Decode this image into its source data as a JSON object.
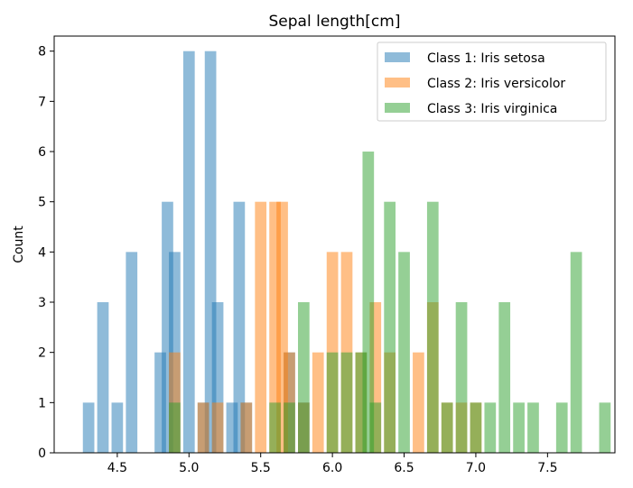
{
  "chart_data": {
    "type": "bar",
    "title": "Sepal length[cm]",
    "xlabel": "",
    "ylabel": "Count",
    "xlim": [
      4.06,
      7.97
    ],
    "ylim": [
      0,
      8.3
    ],
    "bin_width": 0.08,
    "xticks": [
      4.5,
      5.0,
      5.5,
      6.0,
      6.5,
      7.0,
      7.5
    ],
    "xtick_labels": [
      "4.5",
      "5.0",
      "5.5",
      "6.0",
      "6.5",
      "7.0",
      "7.5"
    ],
    "yticks": [
      0,
      1,
      2,
      3,
      4,
      5,
      6,
      7,
      8
    ],
    "ytick_labels": [
      "0",
      "1",
      "2",
      "3",
      "4",
      "5",
      "6",
      "7",
      "8"
    ],
    "grid": false,
    "legend_position": "top-right",
    "opacity": 0.5,
    "series": [
      {
        "name": "Class 1: Iris setosa",
        "color": "#1f77b4",
        "bins": [
          {
            "x": 4.3,
            "count": 1
          },
          {
            "x": 4.4,
            "count": 3
          },
          {
            "x": 4.5,
            "count": 1
          },
          {
            "x": 4.6,
            "count": 4
          },
          {
            "x": 4.8,
            "count": 2
          },
          {
            "x": 4.85,
            "count": 5
          },
          {
            "x": 4.9,
            "count": 4
          },
          {
            "x": 5.0,
            "count": 8
          },
          {
            "x": 5.1,
            "count": 1
          },
          {
            "x": 5.15,
            "count": 8
          },
          {
            "x": 5.2,
            "count": 3
          },
          {
            "x": 5.3,
            "count": 1
          },
          {
            "x": 5.35,
            "count": 5
          },
          {
            "x": 5.4,
            "count": 1
          },
          {
            "x": 5.7,
            "count": 2
          },
          {
            "x": 5.8,
            "count": 1
          }
        ]
      },
      {
        "name": "Class 2: Iris versicolor",
        "color": "#ff7f0e",
        "bins": [
          {
            "x": 4.9,
            "count": 2
          },
          {
            "x": 5.1,
            "count": 1
          },
          {
            "x": 5.2,
            "count": 1
          },
          {
            "x": 5.4,
            "count": 1
          },
          {
            "x": 5.5,
            "count": 5
          },
          {
            "x": 5.6,
            "count": 5
          },
          {
            "x": 5.65,
            "count": 5
          },
          {
            "x": 5.7,
            "count": 2
          },
          {
            "x": 5.8,
            "count": 1
          },
          {
            "x": 5.9,
            "count": 2
          },
          {
            "x": 6.0,
            "count": 4
          },
          {
            "x": 6.1,
            "count": 4
          },
          {
            "x": 6.2,
            "count": 2
          },
          {
            "x": 6.3,
            "count": 3
          },
          {
            "x": 6.4,
            "count": 2
          },
          {
            "x": 6.6,
            "count": 2
          },
          {
            "x": 6.7,
            "count": 3
          },
          {
            "x": 6.8,
            "count": 1
          },
          {
            "x": 6.9,
            "count": 1
          },
          {
            "x": 7.0,
            "count": 1
          }
        ]
      },
      {
        "name": "Class 3: Iris virginica",
        "color": "#2ca02c",
        "bins": [
          {
            "x": 4.9,
            "count": 1
          },
          {
            "x": 5.6,
            "count": 1
          },
          {
            "x": 5.7,
            "count": 1
          },
          {
            "x": 5.8,
            "count": 3
          },
          {
            "x": 6.0,
            "count": 2
          },
          {
            "x": 6.1,
            "count": 2
          },
          {
            "x": 6.2,
            "count": 2
          },
          {
            "x": 6.25,
            "count": 6
          },
          {
            "x": 6.3,
            "count": 1
          },
          {
            "x": 6.4,
            "count": 5
          },
          {
            "x": 6.5,
            "count": 4
          },
          {
            "x": 6.7,
            "count": 5
          },
          {
            "x": 6.8,
            "count": 1
          },
          {
            "x": 6.9,
            "count": 3
          },
          {
            "x": 7.0,
            "count": 1
          },
          {
            "x": 7.1,
            "count": 1
          },
          {
            "x": 7.2,
            "count": 3
          },
          {
            "x": 7.3,
            "count": 1
          },
          {
            "x": 7.4,
            "count": 1
          },
          {
            "x": 7.6,
            "count": 1
          },
          {
            "x": 7.7,
            "count": 4
          },
          {
            "x": 7.9,
            "count": 1
          }
        ]
      }
    ]
  }
}
